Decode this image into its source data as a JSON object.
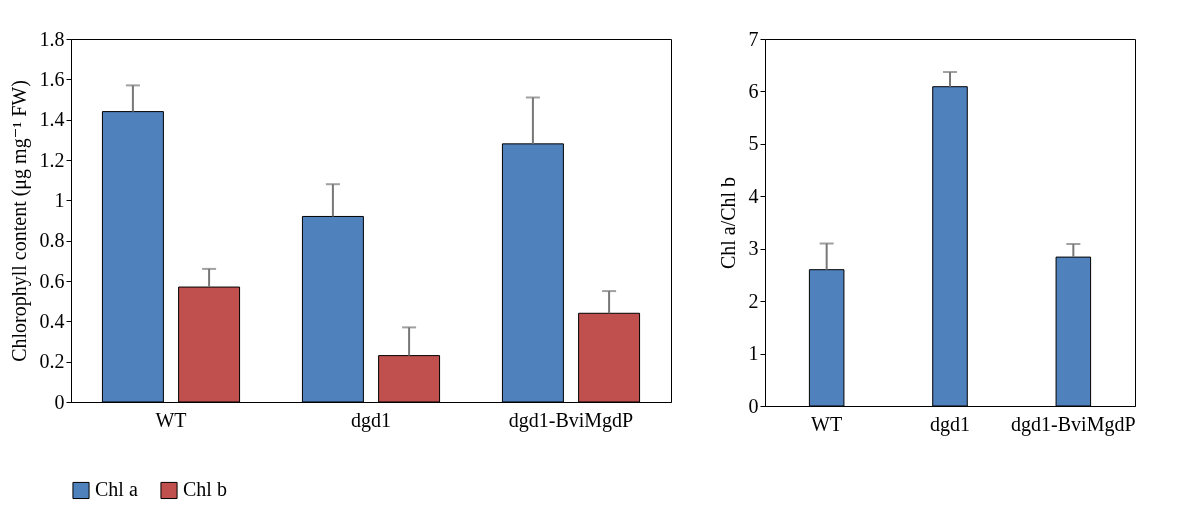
{
  "chart_data": [
    {
      "type": "bar",
      "categories": [
        "WT",
        "dgd1",
        "dgd1-BviMgdP"
      ],
      "ylabel": "Chlorophyll content (μg mg⁻¹ FW)",
      "ylim": [
        0,
        1.8
      ],
      "yticks": [
        0,
        0.2,
        0.4,
        0.6,
        0.8,
        1,
        1.2,
        1.4,
        1.6,
        1.8
      ],
      "legend": "bottom left",
      "grid": false,
      "series": [
        {
          "name": "Chl a",
          "color": "#4f81bd",
          "values": [
            1.44,
            0.92,
            1.28
          ],
          "errors": [
            [
              1.44,
              1.57
            ],
            [
              0.92,
              1.08
            ],
            [
              1.28,
              1.51
            ]
          ]
        },
        {
          "name": "Chl b",
          "color": "#c0504d",
          "values": [
            0.57,
            0.23,
            0.44
          ],
          "errors": [
            [
              0.57,
              0.66
            ],
            [
              0.23,
              0.37
            ],
            [
              0.44,
              0.55
            ]
          ]
        }
      ]
    },
    {
      "type": "bar",
      "categories": [
        "WT",
        "dgd1",
        "dgd1-BviMgdP"
      ],
      "ylabel": "Chl a/Chl b",
      "ylim": [
        0,
        7
      ],
      "yticks": [
        0,
        1,
        2,
        3,
        4,
        5,
        6,
        7
      ],
      "grid": false,
      "series": [
        {
          "color": "#4f81bd",
          "values": [
            2.6,
            6.09,
            2.84
          ],
          "errors": [
            [
              2.6,
              3.1
            ],
            [
              6.09,
              6.37
            ],
            [
              2.84,
              3.09
            ]
          ]
        }
      ]
    }
  ]
}
